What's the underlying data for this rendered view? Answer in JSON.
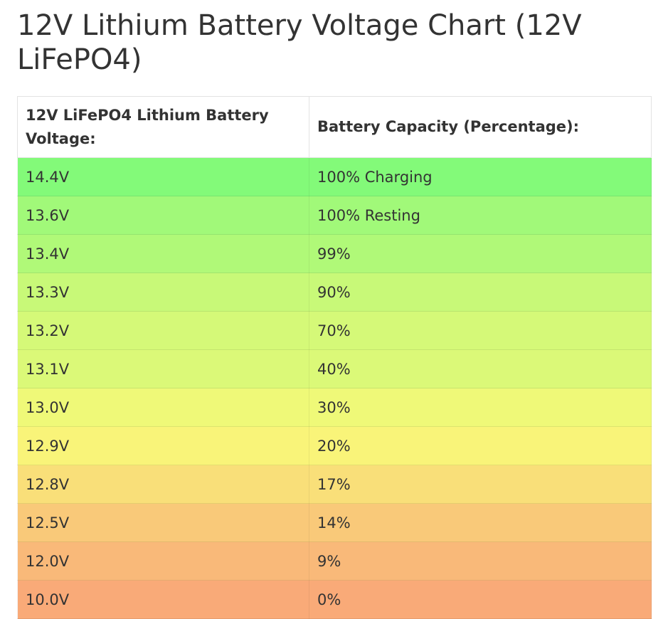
{
  "title": "12V Lithium Battery Voltage Chart (12V LiFePO4)",
  "table": {
    "headers": [
      "12V LiFePO4 Lithium Battery Voltage:",
      "Battery Capacity (Percentage):"
    ],
    "rows": [
      {
        "voltage": "14.4V",
        "capacity": "100% Charging",
        "color": "#83fa79"
      },
      {
        "voltage": "13.6V",
        "capacity": "100% Resting",
        "color": "#a1f979"
      },
      {
        "voltage": "13.4V",
        "capacity": "99%",
        "color": "#b0f978"
      },
      {
        "voltage": "13.3V",
        "capacity": "90%",
        "color": "#c8f978"
      },
      {
        "voltage": "13.2V",
        "capacity": "70%",
        "color": "#d5f978"
      },
      {
        "voltage": "13.1V",
        "capacity": "40%",
        "color": "#dbf978"
      },
      {
        "voltage": "13.0V",
        "capacity": "30%",
        "color": "#eff978"
      },
      {
        "voltage": "12.9V",
        "capacity": "20%",
        "color": "#f9f479"
      },
      {
        "voltage": "12.8V",
        "capacity": "17%",
        "color": "#f9df79"
      },
      {
        "voltage": "12.5V",
        "capacity": "14%",
        "color": "#f9c979"
      },
      {
        "voltage": "12.0V",
        "capacity": "9%",
        "color": "#f9b979"
      },
      {
        "voltage": "10.0V",
        "capacity": "0%",
        "color": "#f9aa78"
      }
    ]
  }
}
